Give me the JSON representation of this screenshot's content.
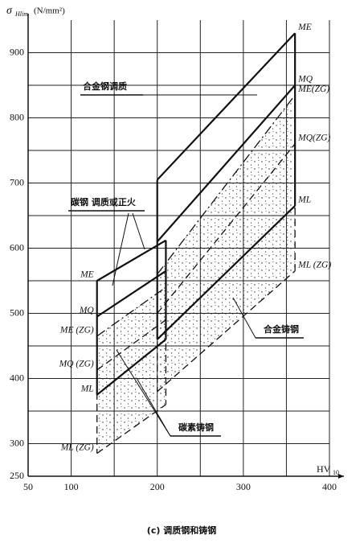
{
  "chart_data": {
    "type": "line",
    "y_label": "σ",
    "y_label_sub": "Hlim",
    "y_label_unit": "(N/mm²)",
    "x_label": "HV",
    "x_label_sub": "10",
    "caption": "(c) 调质钢和铸钢",
    "annotations": [
      "合金钢调质",
      "碳钢 调质或正火",
      "合金铸钢",
      "碳素铸钢"
    ],
    "xlim": [
      50,
      400
    ],
    "ylim": [
      250,
      950
    ],
    "xticks": [
      50,
      100,
      200,
      300,
      400
    ],
    "xminor": [
      150,
      250,
      350
    ],
    "yticks": [
      250,
      300,
      400,
      500,
      600,
      700,
      800,
      900
    ],
    "yminor": [
      350,
      450,
      550,
      650,
      750,
      850
    ],
    "grid": true,
    "color": "#111111",
    "groups": [
      {
        "side": "left",
        "series": [
          {
            "name": "ME",
            "dash": "solid",
            "x": [
              130,
              210
            ],
            "values": [
              550,
              612
            ]
          },
          {
            "name": "MQ",
            "dash": "solid",
            "x": [
              130,
              210
            ],
            "values": [
              495,
              565
            ]
          },
          {
            "name": "ME (ZG)",
            "dash": "dashdot",
            "x": [
              130,
              210
            ],
            "values": [
              465,
              540
            ]
          },
          {
            "name": "MQ (ZG)",
            "dash": "dashed",
            "x": [
              130,
              210
            ],
            "values": [
              413,
              490
            ]
          },
          {
            "name": "ML",
            "dash": "solid",
            "x": [
              130,
              210
            ],
            "values": [
              375,
              460
            ]
          },
          {
            "name": "ML (ZG)",
            "dash": "dashed",
            "x": [
              130,
              210
            ],
            "values": [
              285,
              360
            ]
          }
        ]
      },
      {
        "side": "right",
        "series": [
          {
            "name": "ME",
            "dash": "solid",
            "x": [
              200,
              360
            ],
            "values": [
              705,
              930
            ]
          },
          {
            "name": "MQ",
            "dash": "solid",
            "x": [
              200,
              360
            ],
            "values": [
              610,
              850
            ]
          },
          {
            "name": "ME(ZG)",
            "dash": "dashdot",
            "x": [
              200,
              360
            ],
            "values": [
              560,
              835
            ]
          },
          {
            "name": "MQ(ZG)",
            "dash": "dashed",
            "x": [
              200,
              360
            ],
            "values": [
              500,
              760
            ]
          },
          {
            "name": "ML",
            "dash": "solid",
            "x": [
              200,
              360
            ],
            "values": [
              460,
              665
            ]
          },
          {
            "name": "ML (ZG)",
            "dash": "dashed",
            "x": [
              200,
              360
            ],
            "values": [
              380,
              565
            ]
          }
        ]
      }
    ]
  }
}
